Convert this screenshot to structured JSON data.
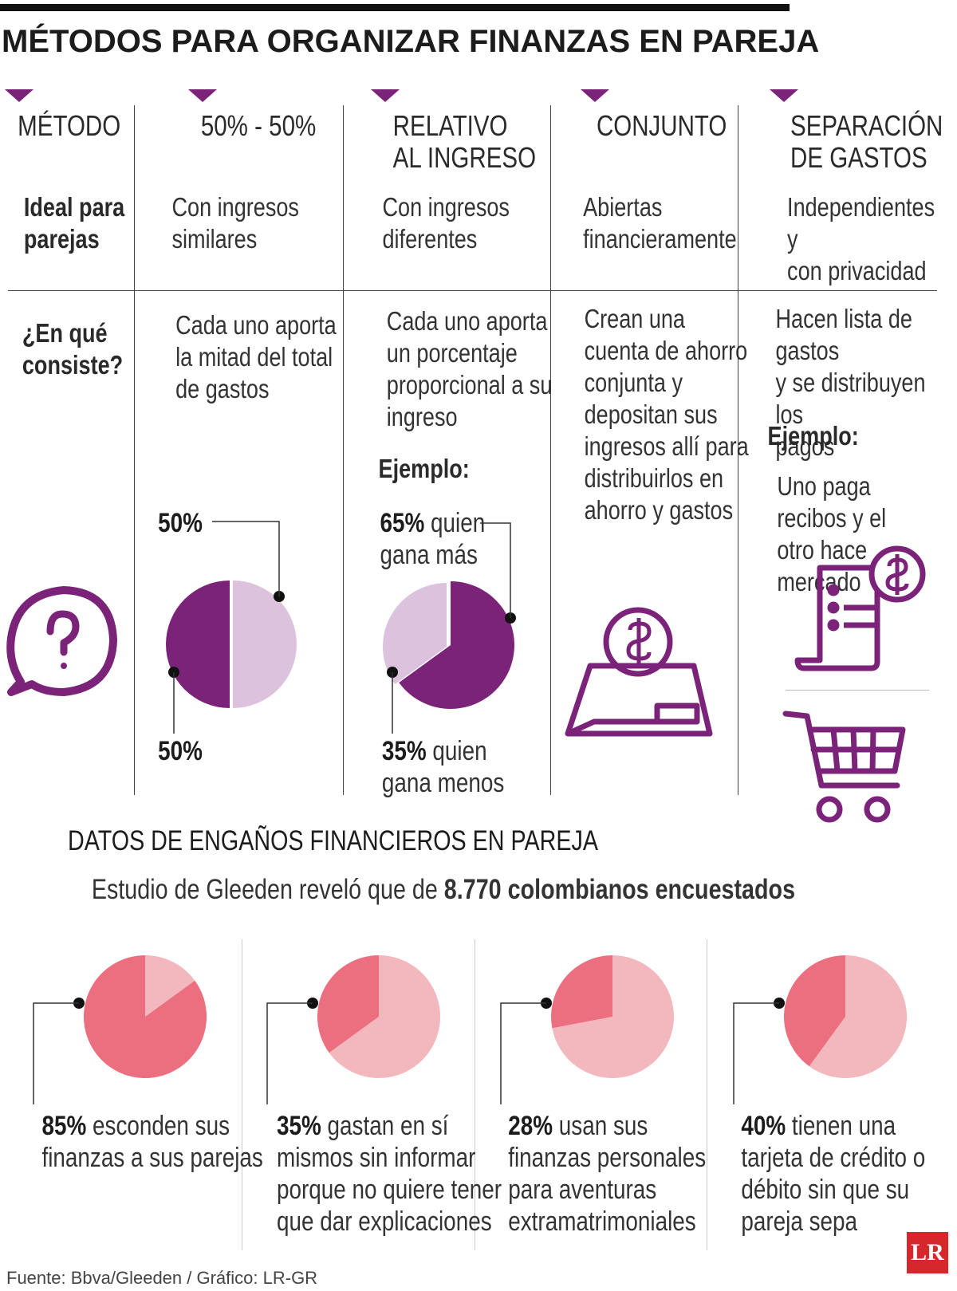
{
  "title": "MÉTODOS PARA ORGANIZAR FINANZAS EN PAREJA",
  "columns": [
    {
      "header": "MÉTODO",
      "ideal": "Ideal para\nparejas",
      "detail": "¿En qué\nconsiste?"
    },
    {
      "header": "50% - 50%",
      "ideal": "Con ingresos\nsimilares",
      "detail": "Cada uno aporta\nla mitad del total\nde gastos"
    },
    {
      "header": "RELATIVO\nAL INGRESO",
      "ideal": "Con ingresos\ndiferentes",
      "detail": "Cada uno aporta\nun porcentaje\nproporcional a su\ningreso"
    },
    {
      "header": "CONJUNTO",
      "ideal": "Abiertas\nfinancieramente",
      "detail": "Crean una\ncuenta de ahorro\nconjunta y\ndepositan sus\ningresos allí para\ndistribuirlos en\nahorro y gastos"
    },
    {
      "header": "SEPARACIÓN\nDE GASTOS",
      "ideal": "Independientes y\ncon privacidad",
      "detail": "Hacen lista de gastos\ny se distribuyen los\npagos"
    }
  ],
  "example_label": "Ejemplo:",
  "separation_example": "Uno paga recibos y el\notro hace mercado",
  "icons": [
    "question-bubble-icon",
    "piggy-bank-coin-icon",
    "receipt-dollar-icon",
    "shopping-cart-icon"
  ],
  "colors": {
    "purple": "#7b2279",
    "light_purple": "#dcc2dd",
    "pink": "#ec6f80",
    "light_pink": "#f2b8bd"
  },
  "chart_data": [
    {
      "type": "pie",
      "name": "50% - 50%",
      "slices": [
        {
          "value": 50,
          "pct": "50%",
          "desc": ""
        },
        {
          "value": 50,
          "pct": "50%",
          "desc": ""
        }
      ]
    },
    {
      "type": "pie",
      "name": "Relativo al ingreso",
      "slices": [
        {
          "value": 65,
          "pct": "65%",
          "desc": " quien\ngana más"
        },
        {
          "value": 35,
          "pct": "35%",
          "desc": " quien\ngana menos"
        }
      ]
    },
    {
      "type": "pie",
      "title": "DATOS DE ENGAÑOS FINANCIEROS EN PAREJA",
      "subtitle_prefix": "Estudio de Gleeden reveló que de ",
      "subtitle_bold": "8.770 colombianos encuestados",
      "items": [
        {
          "value": 85,
          "pct": "85%",
          "text": " esconden sus\nfinanzas a sus parejas"
        },
        {
          "value": 35,
          "pct": "35%",
          "text": " gastan en sí\nmismos sin informar\nporque no quiere tener\nque dar explicaciones"
        },
        {
          "value": 28,
          "pct": "28%",
          "text": " usan sus\nfinanzas personales\npara aventuras\nextramatrimoniales"
        },
        {
          "value": 40,
          "pct": "40%",
          "text": " tienen una\ntarjeta de crédito o\ndébito sin que su\npareja sepa"
        }
      ]
    }
  ],
  "source": "Fuente: Bbva/Gleeden / Gráfico: LR-GR",
  "logo": "LR"
}
